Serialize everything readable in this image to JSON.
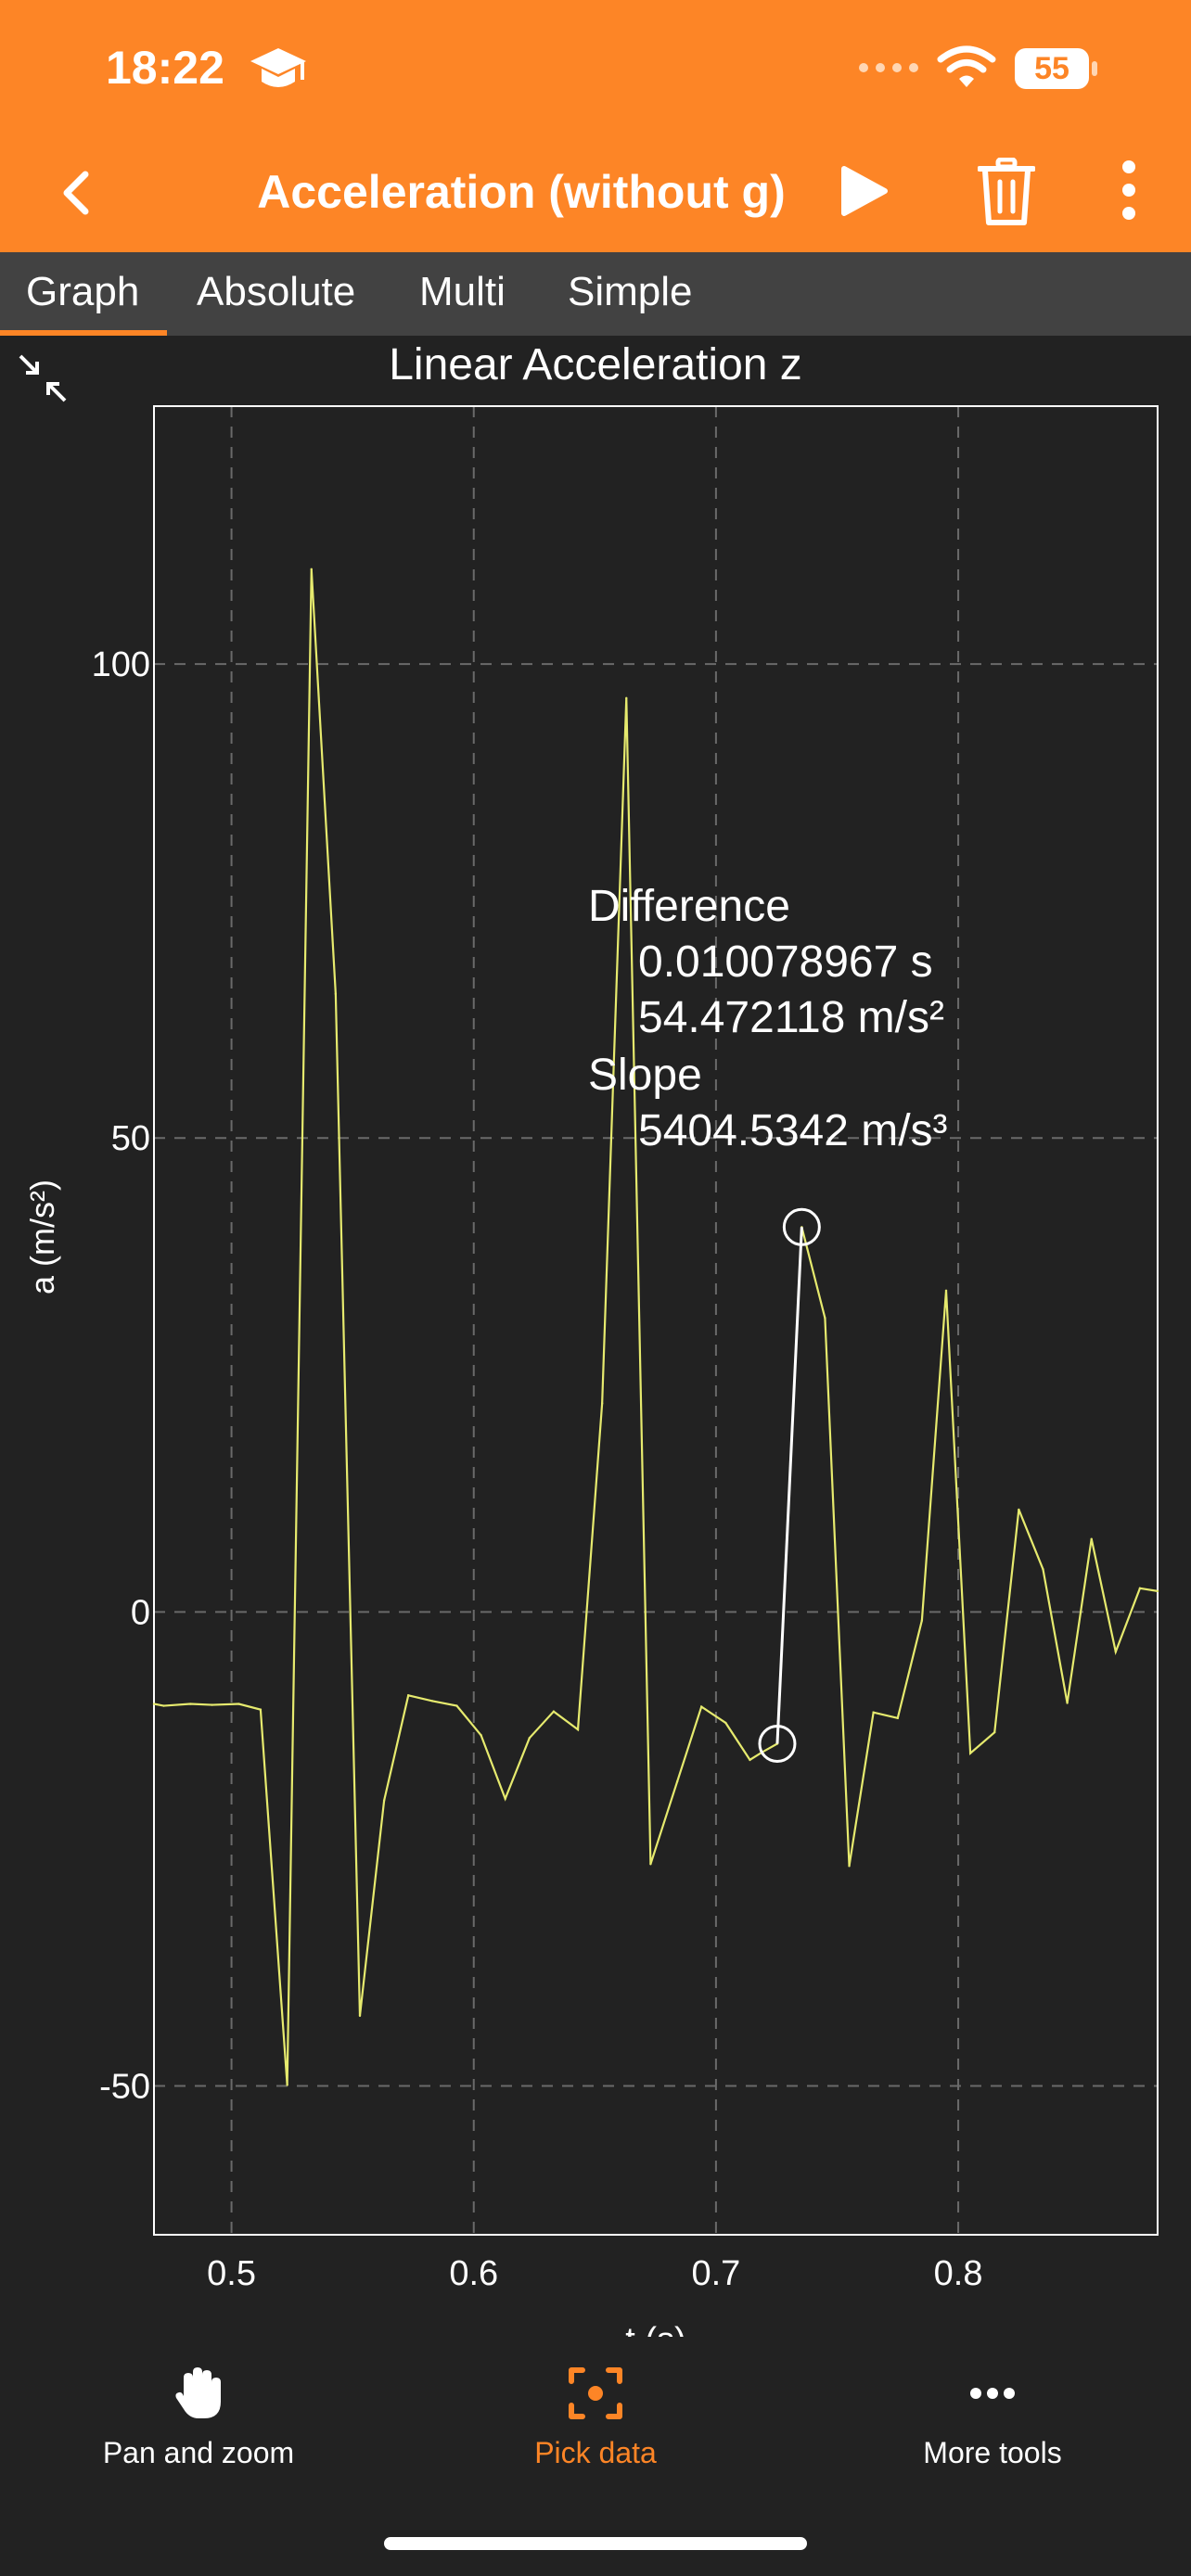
{
  "status_bar": {
    "time": "18:22",
    "battery": "55",
    "icons": [
      "graduation-cap-icon",
      "cellular-dots-icon",
      "wifi-icon",
      "battery-icon"
    ]
  },
  "header": {
    "title": "Acceleration (without g)",
    "back_icon": "chevron-left-icon",
    "play_icon": "play-icon",
    "trash_icon": "trash-icon",
    "menu_icon": "more-vertical-icon"
  },
  "tabs": [
    {
      "label": "Graph",
      "active": true
    },
    {
      "label": "Absolute",
      "active": false
    },
    {
      "label": "Multi",
      "active": false
    },
    {
      "label": "Simple",
      "active": false
    }
  ],
  "measurement": {
    "difference_label": "Difference",
    "dt": "0.010078967 s",
    "da": "54.472118 m/s²",
    "slope_label": "Slope",
    "slope": "5404.5342 m/s³",
    "marker_a": {
      "t": 0.7253,
      "a": -13.9
    },
    "marker_b": {
      "t": 0.7354,
      "a": 40.6
    }
  },
  "chart_data": {
    "type": "line",
    "title": "Linear Acceleration z",
    "xlabel": "t (s)",
    "ylabel": "a (m/s²)",
    "xlim": [
      0.468,
      0.8823
    ],
    "ylim": [
      -65.7,
      127.2
    ],
    "x_ticks": [
      "0.5",
      "0.6",
      "0.7",
      "0.8"
    ],
    "x_tick_values": [
      0.5,
      0.6,
      0.7,
      0.8
    ],
    "y_ticks": [
      "-50",
      "0",
      "50",
      "100"
    ],
    "y_tick_values": [
      -50,
      0,
      50,
      100
    ],
    "grid": true,
    "line_color": "#e6ea6e",
    "series": [
      {
        "x": [
          0.468,
          0.472,
          0.483,
          0.492,
          0.503,
          0.512,
          0.523,
          0.533,
          0.543,
          0.553,
          0.563,
          0.573,
          0.583,
          0.593,
          0.603,
          0.613,
          0.623,
          0.633,
          0.643,
          0.653,
          0.663,
          0.673,
          0.684,
          0.694,
          0.704,
          0.714,
          0.719,
          0.7253,
          0.7354,
          0.745,
          0.755,
          0.765,
          0.775,
          0.785,
          0.795,
          0.805,
          0.815,
          0.825,
          0.835,
          0.845,
          0.855,
          0.865,
          0.875,
          0.8823
        ],
        "y": [
          -9.7,
          -9.9,
          -9.7,
          -9.8,
          -9.7,
          -10.3,
          -49.9,
          110.0,
          65.2,
          -42.6,
          -19.9,
          -8.8,
          -9.4,
          -9.9,
          -13.0,
          -19.7,
          -13.3,
          -10.5,
          -12.4,
          22.0,
          96.4,
          -26.6,
          -17.9,
          -10.0,
          -11.7,
          -15.6,
          -14.8,
          -13.9,
          40.6,
          31.0,
          -26.8,
          -10.6,
          -11.2,
          -0.9,
          33.9,
          -14.9,
          -12.7,
          10.8,
          4.5,
          -9.6,
          7.7,
          -4.2,
          2.5,
          2.2
        ]
      }
    ]
  },
  "bottom_tools": [
    {
      "label": "Pan and zoom",
      "icon": "hand-icon",
      "active": false
    },
    {
      "label": "Pick data",
      "icon": "target-icon",
      "active": true
    },
    {
      "label": "More tools",
      "icon": "more-horizontal-icon",
      "active": false
    }
  ]
}
